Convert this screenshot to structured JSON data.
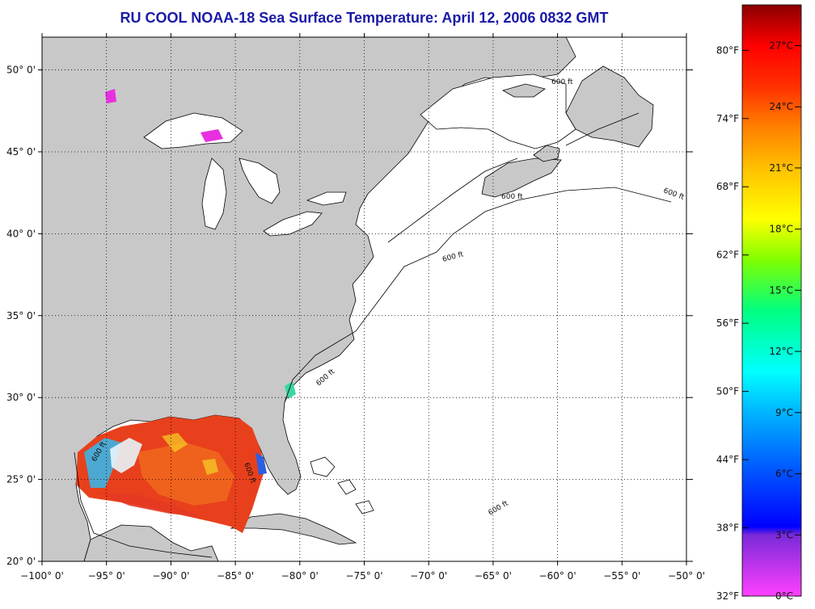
{
  "title": "RU COOL  NOAA-18  Sea Surface Temperature:  April 12, 2006 0832 GMT",
  "map": {
    "lon_range": [
      -100,
      -50
    ],
    "lat_range": [
      20,
      52
    ],
    "lon_ticks": [
      {
        "value": -100,
        "label": "−100° 0'"
      },
      {
        "value": -95,
        "label": "−95° 0'"
      },
      {
        "value": -90,
        "label": "−90° 0'"
      },
      {
        "value": -85,
        "label": "−85° 0'"
      },
      {
        "value": -80,
        "label": "−80° 0'"
      },
      {
        "value": -75,
        "label": "−75° 0'"
      },
      {
        "value": -70,
        "label": "−70° 0'"
      },
      {
        "value": -65,
        "label": "−65° 0'"
      },
      {
        "value": -60,
        "label": "−60° 0'"
      },
      {
        "value": -55,
        "label": "−55° 0'"
      },
      {
        "value": -50,
        "label": "−50° 0'"
      }
    ],
    "lat_ticks": [
      {
        "value": 20,
        "label": "20° 0'"
      },
      {
        "value": 25,
        "label": "25° 0'"
      },
      {
        "value": 30,
        "label": "30° 0'"
      },
      {
        "value": 35,
        "label": "35° 0'"
      },
      {
        "value": 40,
        "label": "40° 0'"
      },
      {
        "value": 45,
        "label": "45° 0'"
      },
      {
        "value": 50,
        "label": "50° 0'"
      }
    ],
    "isobath_labels": [
      "600 ft",
      "600 ft",
      "600 ft",
      "600 ft",
      "600 ft",
      "600 ft",
      "600 ft",
      "600 ft"
    ],
    "colors": {
      "land": "#c8c8c8",
      "ocean": "#ffffff",
      "grid": "#000000",
      "sst_warm": "#e8401c",
      "sst_cool": "#3cb4e6",
      "sst_cold": "#e830e0"
    }
  },
  "colorbar": {
    "celsius_range": [
      0,
      29
    ],
    "fahrenheit_range": [
      32,
      84
    ],
    "celsius_ticks": [
      {
        "value": 0,
        "label": "0°C"
      },
      {
        "value": 3,
        "label": "3°C"
      },
      {
        "value": 6,
        "label": "6°C"
      },
      {
        "value": 9,
        "label": "9°C"
      },
      {
        "value": 12,
        "label": "12°C"
      },
      {
        "value": 15,
        "label": "15°C"
      },
      {
        "value": 18,
        "label": "18°C"
      },
      {
        "value": 21,
        "label": "21°C"
      },
      {
        "value": 24,
        "label": "24°C"
      },
      {
        "value": 27,
        "label": "27°C"
      }
    ],
    "fahrenheit_ticks": [
      {
        "value": 32,
        "label": "32°F"
      },
      {
        "value": 38,
        "label": "38°F"
      },
      {
        "value": 44,
        "label": "44°F"
      },
      {
        "value": 50,
        "label": "50°F"
      },
      {
        "value": 56,
        "label": "56°F"
      },
      {
        "value": 62,
        "label": "62°F"
      },
      {
        "value": 68,
        "label": "68°F"
      },
      {
        "value": 74,
        "label": "74°F"
      },
      {
        "value": 80,
        "label": "80°F"
      }
    ],
    "gradient_stops": [
      {
        "value": 0,
        "color": "#ff40ff"
      },
      {
        "value": 3,
        "color": "#7a2ad8"
      },
      {
        "value": 3.4,
        "color": "#0000ff"
      },
      {
        "value": 6,
        "color": "#0050ff"
      },
      {
        "value": 9,
        "color": "#00b4ff"
      },
      {
        "value": 11,
        "color": "#00ffff"
      },
      {
        "value": 14,
        "color": "#00ff80"
      },
      {
        "value": 16.5,
        "color": "#80ff00"
      },
      {
        "value": 18.5,
        "color": "#ffff00"
      },
      {
        "value": 21,
        "color": "#ffc000"
      },
      {
        "value": 23,
        "color": "#ff8000"
      },
      {
        "value": 25,
        "color": "#ff3000"
      },
      {
        "value": 27,
        "color": "#ff0000"
      },
      {
        "value": 29,
        "color": "#8a0000"
      }
    ]
  }
}
